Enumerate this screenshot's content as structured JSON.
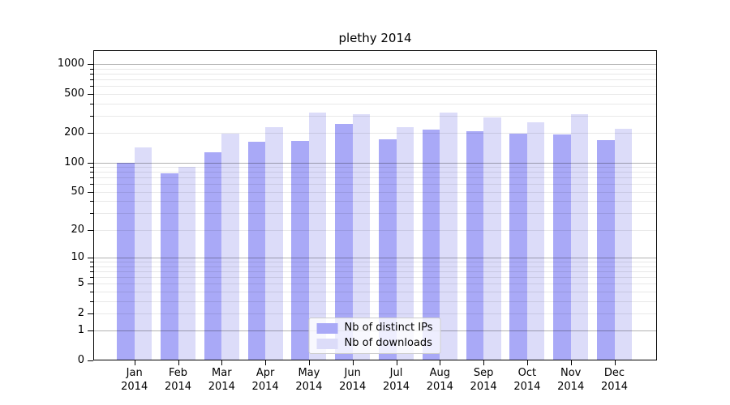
{
  "chart_data": {
    "type": "bar",
    "title": "plethy 2014",
    "categories": [
      "Jan",
      "Feb",
      "Mar",
      "Apr",
      "May",
      "Jun",
      "Jul",
      "Aug",
      "Sep",
      "Oct",
      "Nov",
      "Dec"
    ],
    "x_tick_year": "2014",
    "series": [
      {
        "name": "Nb of distinct IPs",
        "color": "#a9a9f7",
        "values": [
          100,
          77,
          128,
          164,
          168,
          248,
          172,
          216,
          210,
          197,
          195,
          169
        ]
      },
      {
        "name": "Nb of downloads",
        "color": "#dcdcf9",
        "values": [
          142,
          90,
          197,
          230,
          322,
          312,
          228,
          326,
          288,
          256,
          312,
          220
        ]
      }
    ],
    "y_axis": {
      "scale": "log1p",
      "ticks": [
        0,
        1,
        2,
        5,
        10,
        20,
        50,
        100,
        200,
        500,
        1000
      ],
      "major_gridlines": [
        1,
        10,
        100,
        1000
      ],
      "top": 1390
    },
    "xlabel": "",
    "ylabel": "",
    "legend_position": "lower center",
    "grid": true
  }
}
